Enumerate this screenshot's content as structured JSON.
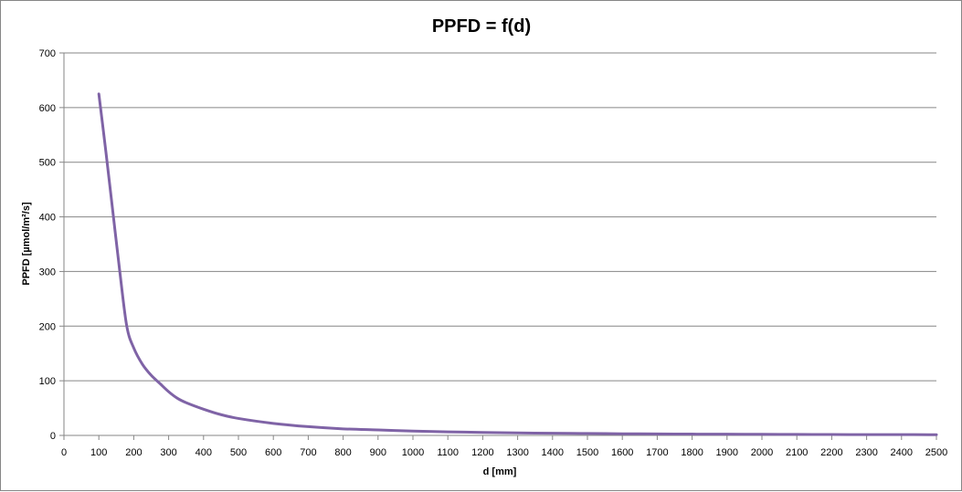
{
  "chart_data": {
    "type": "line",
    "title": "PPFD = f(d)",
    "xlabel": "d [mm]",
    "ylabel": "PPFD [µmol/m²/s]",
    "xlim": [
      0,
      2500
    ],
    "ylim": [
      0,
      700
    ],
    "x_ticks": [
      0,
      100,
      200,
      300,
      400,
      500,
      600,
      700,
      800,
      900,
      1000,
      1100,
      1200,
      1300,
      1400,
      1500,
      1600,
      1700,
      1800,
      1900,
      2000,
      2100,
      2200,
      2300,
      2400,
      2500
    ],
    "y_ticks": [
      0,
      100,
      200,
      300,
      400,
      500,
      600,
      700
    ],
    "grid": "horizontal",
    "legend": "none",
    "series": [
      {
        "name": "PPFD",
        "color": "#7f63a6",
        "x": [
          100,
          120,
          140,
          160,
          180,
          200,
          225,
          250,
          275,
          300,
          325,
          350,
          400,
          450,
          500,
          600,
          700,
          800,
          900,
          1000,
          1100,
          1200,
          1300,
          1400,
          1500,
          1600,
          1700,
          1800,
          1900,
          2000,
          2100,
          2200,
          2300,
          2400,
          2500
        ],
        "values": [
          625,
          520,
          410,
          300,
          200,
          160,
          130,
          110,
          95,
          80,
          68,
          60,
          48,
          38,
          31,
          22,
          16,
          12,
          10,
          8,
          6.5,
          5.5,
          4.5,
          4,
          3.5,
          3,
          2.7,
          2.4,
          2.2,
          2,
          1.8,
          1.6,
          1.5,
          1.4,
          1.3
        ]
      }
    ]
  }
}
